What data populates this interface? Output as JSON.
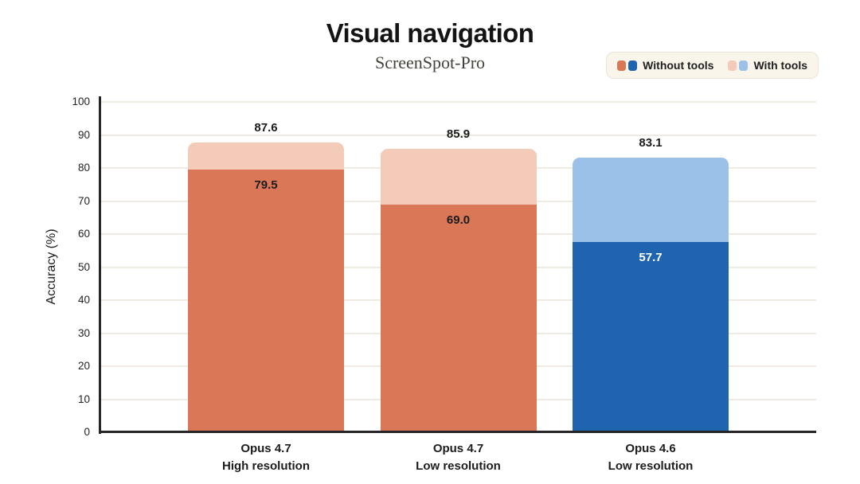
{
  "header": {
    "title": "Visual navigation",
    "subtitle": "ScreenSpot-Pro"
  },
  "legend": {
    "items": [
      {
        "label": "Without tools",
        "swatch_colors": [
          "#D97757",
          "#1E64AF"
        ]
      },
      {
        "label": "With tools",
        "swatch_colors": [
          "#F4CBB8",
          "#9CC1E8"
        ]
      }
    ]
  },
  "chart_data": {
    "type": "bar",
    "stacked": true,
    "title": "Visual navigation",
    "subtitle": "ScreenSpot-Pro",
    "xlabel": "",
    "ylabel": "Accuracy (%)",
    "ylim": [
      0,
      100
    ],
    "ytick_step": 10,
    "grid": true,
    "legend_position": "top-right",
    "categories": [
      "Opus 4.7 High resolution",
      "Opus 4.7 Low resolution",
      "Opus 4.6 Low resolution"
    ],
    "series": [
      {
        "name": "Without tools",
        "values": [
          79.5,
          69.0,
          57.7
        ]
      },
      {
        "name": "With tools",
        "values": [
          87.6,
          85.9,
          83.1
        ]
      }
    ],
    "bars": [
      {
        "category_line1": "Opus 4.7",
        "category_line2": "High resolution",
        "without_tools": 79.5,
        "with_tools_total": 87.6,
        "color_without": "#D97757",
        "color_with": "#F4CBB8",
        "inner_label_color": "#1C1C1C"
      },
      {
        "category_line1": "Opus 4.7",
        "category_line2": "Low resolution",
        "without_tools": 69.0,
        "with_tools_total": 85.9,
        "color_without": "#D97757",
        "color_with": "#F4CBB8",
        "inner_label_color": "#1C1C1C"
      },
      {
        "category_line1": "Opus 4.6",
        "category_line2": "Low resolution",
        "without_tools": 57.7,
        "with_tools_total": 83.1,
        "color_without": "#1E64AF",
        "color_with": "#9CC1E8",
        "inner_label_color": "#FFFFFF"
      }
    ],
    "style_colors": {
      "gridline": "#EFEBE2",
      "axis": "#262626",
      "legend_background": "#F9F5EA",
      "legend_border": "#EAE4D6"
    }
  }
}
